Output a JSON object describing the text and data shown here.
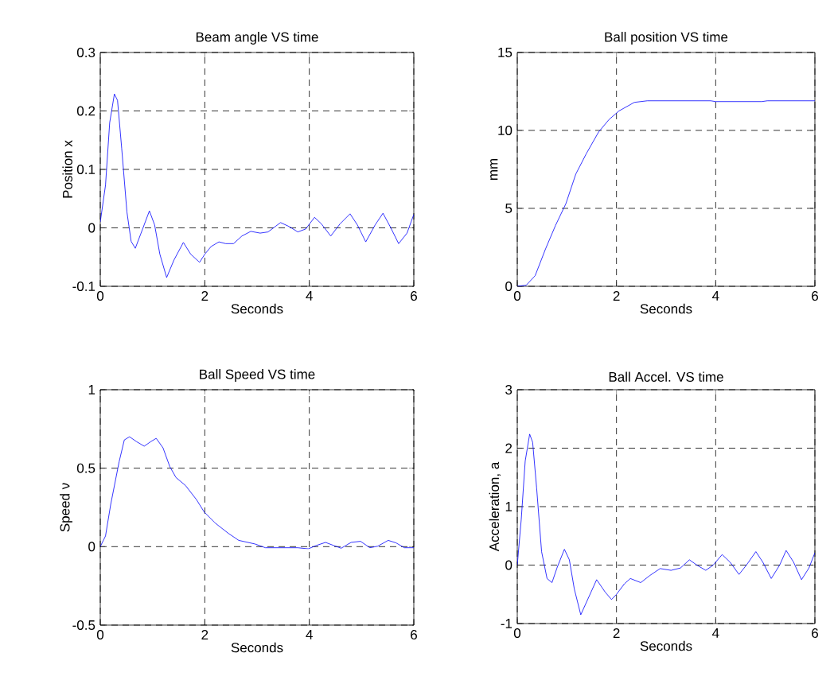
{
  "chart_data": [
    {
      "type": "line",
      "title": "Beam angle VS time",
      "xlabel": "Seconds",
      "ylabel": "Position x",
      "color": "#0000ff",
      "grid": true,
      "xlim": [
        0,
        6
      ],
      "ylim": [
        -0.1,
        0.3
      ],
      "xticks": [
        0,
        2,
        4,
        6
      ],
      "yticks": [
        -0.1,
        0,
        0.1,
        0.2,
        0.3
      ],
      "x": [
        0,
        0.1,
        0.18,
        0.27,
        0.33,
        0.41,
        0.51,
        0.59,
        0.67,
        0.78,
        0.94,
        1.04,
        1.14,
        1.27,
        1.41,
        1.59,
        1.73,
        1.9,
        2.0,
        2.12,
        2.27,
        2.4,
        2.55,
        2.71,
        2.88,
        3.06,
        3.21,
        3.45,
        3.62,
        3.78,
        3.93,
        4.1,
        4.23,
        4.41,
        4.59,
        4.78,
        4.92,
        5.08,
        5.26,
        5.41,
        5.56,
        5.71,
        5.87,
        6.0
      ],
      "values": [
        0.01,
        0.073,
        0.18,
        0.229,
        0.218,
        0.136,
        0.027,
        -0.023,
        -0.035,
        -0.009,
        0.029,
        0.005,
        -0.045,
        -0.085,
        -0.055,
        -0.025,
        -0.045,
        -0.059,
        -0.045,
        -0.032,
        -0.024,
        -0.027,
        -0.027,
        -0.014,
        -0.006,
        -0.009,
        -0.007,
        0.009,
        0.002,
        -0.007,
        -0.002,
        0.018,
        0.007,
        -0.014,
        0.007,
        0.024,
        0.005,
        -0.024,
        0.005,
        0.025,
        0,
        -0.027,
        -0.009,
        0.023
      ]
    },
    {
      "type": "line",
      "title": "Ball position VS time",
      "xlabel": "Seconds",
      "ylabel": "mm",
      "color": "#0000ff",
      "grid": true,
      "xlim": [
        0,
        6
      ],
      "ylim": [
        0,
        15
      ],
      "xticks": [
        0,
        2,
        4,
        6
      ],
      "yticks": [
        0,
        5,
        10,
        15
      ],
      "x": [
        0,
        0.18,
        0.36,
        0.57,
        0.77,
        0.98,
        1.18,
        1.39,
        1.64,
        1.85,
        2.05,
        2.36,
        2.62,
        2.88,
        3.9,
        4.0,
        4.93,
        5.04,
        6.0
      ],
      "values": [
        0,
        0.07,
        0.68,
        2.4,
        3.9,
        5.3,
        7.2,
        8.5,
        9.9,
        10.7,
        11.25,
        11.8,
        11.9,
        11.9,
        11.9,
        11.85,
        11.85,
        11.9,
        11.9
      ]
    },
    {
      "type": "line",
      "title": "Ball Speed VS time",
      "xlabel": "Seconds",
      "ylabel": "Speed ν",
      "color": "#0000ff",
      "grid": true,
      "xlim": [
        0,
        6
      ],
      "ylim": [
        -0.5,
        1
      ],
      "xticks": [
        0,
        2,
        4,
        6
      ],
      "yticks": [
        -0.5,
        0,
        0.5,
        1
      ],
      "x": [
        0,
        0.1,
        0.2,
        0.36,
        0.46,
        0.56,
        0.69,
        0.84,
        0.97,
        1.07,
        1.2,
        1.33,
        1.45,
        1.63,
        1.84,
        1.99,
        2.2,
        2.45,
        2.65,
        2.96,
        3.16,
        3.47,
        3.78,
        3.98,
        4.13,
        4.31,
        4.47,
        4.61,
        4.8,
        4.98,
        5.16,
        5.31,
        5.51,
        5.66,
        5.82,
        6.0
      ],
      "values": [
        0,
        0.068,
        0.27,
        0.54,
        0.68,
        0.7,
        0.67,
        0.64,
        0.67,
        0.69,
        0.63,
        0.51,
        0.44,
        0.39,
        0.3,
        0.22,
        0.15,
        0.085,
        0.04,
        0.017,
        -0.007,
        -0.007,
        -0.007,
        -0.014,
        0.007,
        0.027,
        0.007,
        -0.01,
        0.027,
        0.034,
        -0.007,
        0.003,
        0.04,
        0.024,
        -0.007,
        -0.007
      ]
    },
    {
      "type": "line",
      "title": "Ball Accel. VS time",
      "xlabel": "Seconds",
      "ylabel": "Acceleration, a",
      "color": "#0000ff",
      "grid": true,
      "xlim": [
        0,
        6
      ],
      "ylim": [
        -1,
        3
      ],
      "xticks": [
        0,
        2,
        4,
        6
      ],
      "yticks": [
        -1,
        0,
        1,
        2,
        3
      ],
      "x": [
        0,
        0.08,
        0.16,
        0.25,
        0.31,
        0.39,
        0.49,
        0.6,
        0.7,
        0.8,
        0.95,
        1.05,
        1.15,
        1.28,
        1.44,
        1.6,
        1.77,
        1.9,
        2.0,
        2.16,
        2.28,
        2.49,
        2.67,
        2.88,
        3.1,
        3.29,
        3.47,
        3.62,
        3.8,
        3.95,
        4.13,
        4.29,
        4.47,
        4.62,
        4.81,
        4.95,
        5.12,
        5.29,
        5.42,
        5.57,
        5.73,
        5.88,
        6.0
      ],
      "values": [
        0,
        0.78,
        1.78,
        2.24,
        2.1,
        1.32,
        0.23,
        -0.23,
        -0.3,
        -0.05,
        0.27,
        0.09,
        -0.41,
        -0.85,
        -0.55,
        -0.25,
        -0.46,
        -0.59,
        -0.5,
        -0.32,
        -0.23,
        -0.3,
        -0.18,
        -0.06,
        -0.09,
        -0.05,
        0.09,
        0,
        -0.09,
        0,
        0.18,
        0.05,
        -0.16,
        0,
        0.23,
        0.05,
        -0.23,
        0,
        0.25,
        0.05,
        -0.25,
        -0.05,
        0.21
      ]
    }
  ]
}
